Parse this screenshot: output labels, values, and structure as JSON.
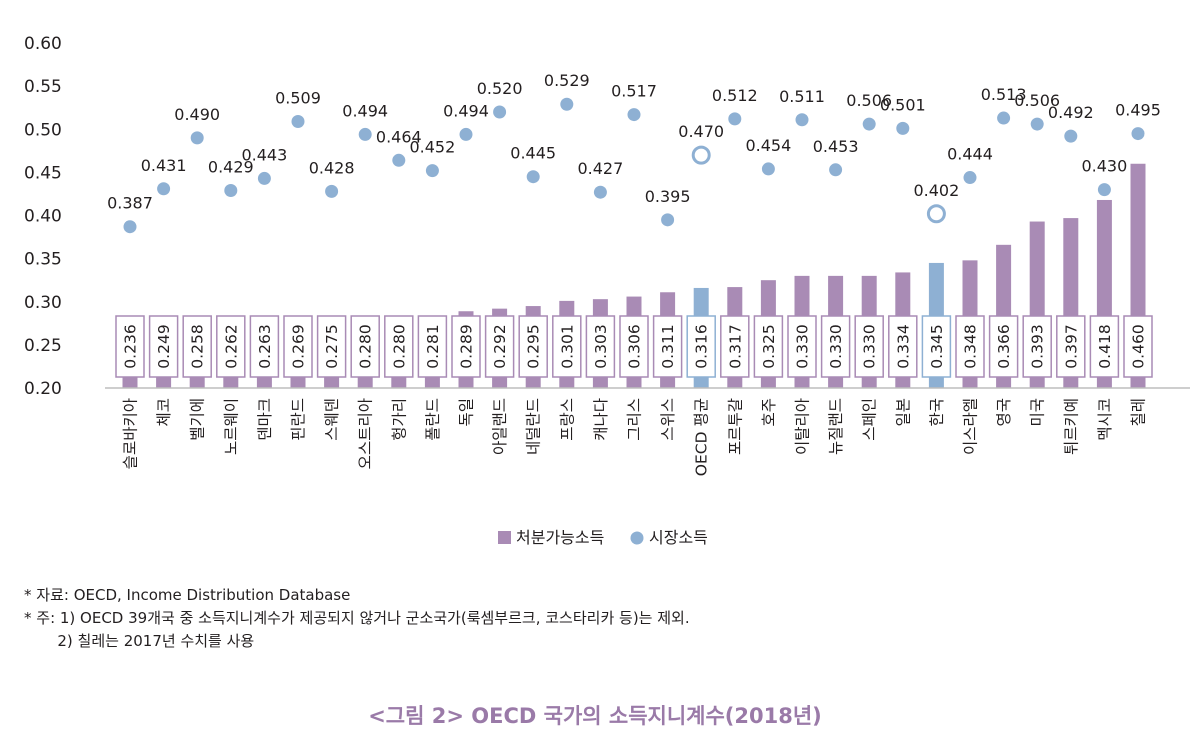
{
  "chart_data": {
    "type": "bar",
    "categories": [
      "슬로바키아",
      "체코",
      "벨기에",
      "노르웨이",
      "덴마크",
      "핀란드",
      "스웨덴",
      "오스트리아",
      "헝가리",
      "폴란드",
      "독일",
      "아일랜드",
      "네덜란드",
      "프랑스",
      "캐나다",
      "그리스",
      "스위스",
      "OECD 평균",
      "포르투갈",
      "호주",
      "이탈리아",
      "뉴질랜드",
      "스페인",
      "일본",
      "한국",
      "이스라엘",
      "영국",
      "미국",
      "튀르키예",
      "멕시코",
      "칠레"
    ],
    "series": [
      {
        "name": "처분가능소득",
        "type": "bar",
        "color": "#a98bb5",
        "highlight_color": "#8eb0d3",
        "values": [
          0.236,
          0.249,
          0.258,
          0.262,
          0.263,
          0.269,
          0.275,
          0.28,
          0.28,
          0.281,
          0.289,
          0.292,
          0.295,
          0.301,
          0.303,
          0.306,
          0.311,
          0.316,
          0.317,
          0.325,
          0.33,
          0.33,
          0.33,
          0.334,
          0.345,
          0.348,
          0.366,
          0.393,
          0.397,
          0.418,
          0.46
        ],
        "labels": [
          "0.236",
          "0.249",
          "0.258",
          "0.262",
          "0.263",
          "0.269",
          "0.275",
          "0.280",
          "0.280",
          "0.281",
          "0.289",
          "0.292",
          "0.295",
          "0.301",
          "0.303",
          "0.306",
          "0.311",
          "0.316",
          "0.317",
          "0.325",
          "0.330",
          "0.330",
          "0.330",
          "0.334",
          "0.345",
          "0.348",
          "0.366",
          "0.393",
          "0.397",
          "0.418",
          "0.460"
        ]
      },
      {
        "name": "시장소득",
        "type": "scatter",
        "color": "#8eb0d3",
        "values": [
          0.387,
          0.431,
          0.49,
          0.429,
          0.443,
          0.509,
          0.428,
          0.494,
          0.464,
          0.452,
          0.494,
          0.52,
          0.445,
          0.529,
          0.427,
          0.517,
          0.395,
          0.47,
          0.512,
          0.454,
          0.511,
          0.453,
          0.506,
          0.501,
          0.402,
          0.444,
          0.513,
          0.506,
          0.492,
          0.43,
          0.495
        ],
        "labels": [
          "0.387",
          "0.431",
          "0.490",
          "0.429",
          "0.443",
          "0.509",
          "0.428",
          "0.494",
          "0.464",
          "0.452",
          "0.494",
          "0.520",
          "0.445",
          "0.529",
          "0.427",
          "0.517",
          "0.395",
          "0.470",
          "0.512",
          "0.454",
          "0.511",
          "0.453",
          "0.506",
          "0.501",
          "0.402",
          "0.444",
          "0.513",
          "0.506",
          "0.492",
          "0.430",
          "0.495"
        ]
      }
    ],
    "highlight_categories": [
      "OECD 평균",
      "한국"
    ],
    "ylim": [
      0.2,
      0.6
    ],
    "yticks": [
      "0.20",
      "0.25",
      "0.30",
      "0.35",
      "0.40",
      "0.45",
      "0.50",
      "0.55",
      "0.60"
    ],
    "grid": false,
    "legend_position": "bottom-center"
  },
  "legend": {
    "bar_label": "처분가능소득",
    "dot_label": "시장소득"
  },
  "notes": {
    "source": "* 자료: OECD, Income Distribution Database",
    "note1": "* 주: 1) OECD 39개국 중 소득지니계수가 제공되지 않거나 군소국가(룩셈부르크, 코스타리카 등)는 제외.",
    "note2": "       2) 칠레는 2017년 수치를 사용"
  },
  "caption": "<그림  2> OECD 국가의 소득지니계수(2018년)"
}
